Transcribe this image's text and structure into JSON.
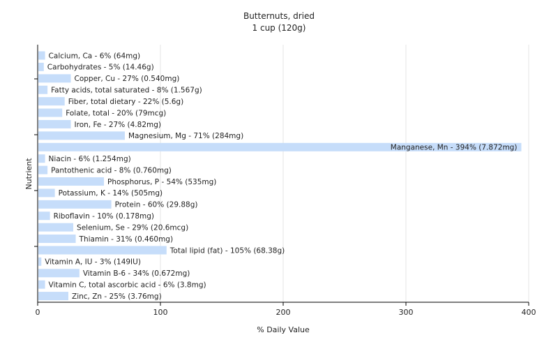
{
  "chart_data": {
    "type": "bar",
    "orientation": "horizontal",
    "title": "Butternuts, dried",
    "subtitle": "1 cup (120g)",
    "xlabel": "% Daily Value",
    "ylabel": "Nutrient",
    "xlim": [
      0,
      400
    ],
    "xticks": [
      "0",
      "100",
      "200",
      "300",
      "400"
    ],
    "grid": true,
    "bar_color": "#c6ddfa",
    "grid_color": "#e6e6e6",
    "axis_color": "#000000",
    "categories": [
      "Calcium, Ca",
      "Carbohydrates",
      "Copper, Cu",
      "Fatty acids, total saturated",
      "Fiber, total dietary",
      "Folate, total",
      "Iron, Fe",
      "Magnesium, Mg",
      "Manganese, Mn",
      "Niacin",
      "Pantothenic acid",
      "Phosphorus, P",
      "Potassium, K",
      "Protein",
      "Riboflavin",
      "Selenium, Se",
      "Thiamin",
      "Total lipid (fat)",
      "Vitamin A, IU",
      "Vitamin B-6",
      "Vitamin C, total ascorbic acid",
      "Zinc, Zn"
    ],
    "values": [
      6,
      5,
      27,
      8,
      22,
      20,
      27,
      71,
      394,
      6,
      8,
      54,
      14,
      60,
      10,
      29,
      31,
      105,
      3,
      34,
      6,
      25
    ],
    "labels": [
      "Calcium, Ca - 6% (64mg)",
      "Carbohydrates - 5% (14.46g)",
      "Copper, Cu - 27% (0.540mg)",
      "Fatty acids, total saturated - 8% (1.567g)",
      "Fiber, total dietary - 22% (5.6g)",
      "Folate, total - 20% (79mcg)",
      "Iron, Fe - 27% (4.82mg)",
      "Magnesium, Mg - 71% (284mg)",
      "Manganese, Mn - 394% (7.872mg)",
      "Niacin - 6% (1.254mg)",
      "Pantothenic acid - 8% (0.760mg)",
      "Phosphorus, P - 54% (535mg)",
      "Potassium, K - 14% (505mg)",
      "Protein - 60% (29.88g)",
      "Riboflavin - 10% (0.178mg)",
      "Selenium, Se - 29% (20.6mcg)",
      "Thiamin - 31% (0.460mg)",
      "Total lipid (fat) - 105% (68.38g)",
      "Vitamin A, IU - 3% (149IU)",
      "Vitamin B-6 - 34% (0.672mg)",
      "Vitamin C, total ascorbic acid - 6% (3.8mg)",
      "Zinc, Zn - 25% (3.76mg)"
    ]
  }
}
